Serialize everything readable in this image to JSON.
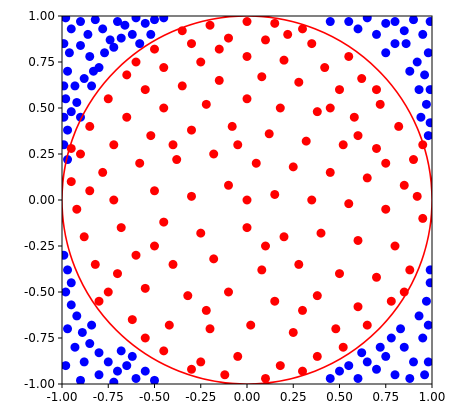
{
  "chart_data": {
    "type": "scatter",
    "title": "",
    "xlabel": "",
    "ylabel": "",
    "xlim": [
      -1.0,
      1.0
    ],
    "ylim": [
      -1.0,
      1.0
    ],
    "grid": false,
    "aspect": "equal",
    "x_ticks": [
      "-1.00",
      "-0.75",
      "-0.50",
      "-0.25",
      "0.00",
      "0.25",
      "0.50",
      "0.75",
      "1.00"
    ],
    "y_ticks": [
      "1.00",
      "0.75",
      "0.50",
      "0.25",
      "0.00",
      "-0.25",
      "-0.50",
      "-0.75",
      "-1.00"
    ],
    "x_tick_values": [
      -1.0,
      -0.75,
      -0.5,
      -0.25,
      0.0,
      0.25,
      0.5,
      0.75,
      1.0
    ],
    "y_tick_values": [
      1.0,
      0.75,
      0.5,
      0.25,
      0.0,
      -0.25,
      -0.5,
      -0.75,
      -1.0
    ],
    "circle": {
      "cx": 0,
      "cy": 0,
      "r": 1,
      "color": "#ff0000"
    },
    "series": [
      {
        "color": "#0000ff",
        "points": [
          [
            -0.98,
            0.99
          ],
          [
            -0.95,
            0.93
          ],
          [
            -0.9,
            0.97
          ],
          [
            -0.86,
            0.9
          ],
          [
            -0.82,
            0.98
          ],
          [
            -0.78,
            0.93
          ],
          [
            -0.74,
            0.87
          ],
          [
            -0.7,
            0.97
          ],
          [
            -0.66,
            0.95
          ],
          [
            -0.6,
            0.99
          ],
          [
            -0.55,
            0.96
          ],
          [
            -0.5,
            0.98
          ],
          [
            -0.45,
            0.99
          ],
          [
            -0.96,
            0.8
          ],
          [
            -0.9,
            0.84
          ],
          [
            -0.85,
            0.78
          ],
          [
            -0.8,
            0.72
          ],
          [
            -0.97,
            0.7
          ],
          [
            -0.93,
            0.62
          ],
          [
            -0.88,
            0.66
          ],
          [
            -0.98,
            0.55
          ],
          [
            -0.95,
            0.48
          ],
          [
            -0.9,
            0.45
          ],
          [
            -0.97,
            0.38
          ],
          [
            -0.99,
            0.3
          ],
          [
            -0.97,
            0.22
          ],
          [
            -0.72,
            0.83
          ],
          [
            -0.77,
            0.8
          ],
          [
            -0.62,
            0.9
          ],
          [
            -0.58,
            0.85
          ],
          [
            -0.52,
            0.9
          ],
          [
            -0.68,
            0.88
          ],
          [
            -0.84,
            0.62
          ],
          [
            -0.83,
            0.7
          ],
          [
            -0.92,
            0.53
          ],
          [
            -0.99,
            0.62
          ],
          [
            -0.99,
            0.85
          ],
          [
            -0.99,
            0.45
          ],
          [
            0.55,
            0.97
          ],
          [
            0.6,
            0.93
          ],
          [
            0.65,
            0.99
          ],
          [
            0.7,
            0.9
          ],
          [
            0.75,
            0.96
          ],
          [
            0.8,
            0.85
          ],
          [
            0.85,
            0.92
          ],
          [
            0.9,
            0.98
          ],
          [
            0.95,
            0.9
          ],
          [
            0.98,
            0.8
          ],
          [
            0.92,
            0.75
          ],
          [
            0.96,
            0.68
          ],
          [
            0.99,
            0.6
          ],
          [
            0.97,
            0.52
          ],
          [
            0.99,
            0.42
          ],
          [
            0.98,
            0.35
          ],
          [
            0.8,
            0.97
          ],
          [
            0.86,
            0.85
          ],
          [
            0.93,
            0.6
          ],
          [
            0.88,
            0.7
          ],
          [
            0.45,
            0.97
          ],
          [
            0.99,
            0.97
          ],
          [
            0.75,
            0.8
          ],
          [
            0.94,
            0.45
          ],
          [
            -0.98,
            -0.5
          ],
          [
            -0.95,
            -0.57
          ],
          [
            -0.92,
            -0.63
          ],
          [
            -0.97,
            -0.7
          ],
          [
            -0.89,
            -0.72
          ],
          [
            -0.85,
            -0.78
          ],
          [
            -0.93,
            -0.8
          ],
          [
            -0.8,
            -0.83
          ],
          [
            -0.75,
            -0.88
          ],
          [
            -0.88,
            -0.88
          ],
          [
            -0.98,
            -0.9
          ],
          [
            -0.7,
            -0.93
          ],
          [
            -0.65,
            -0.9
          ],
          [
            -0.8,
            -0.95
          ],
          [
            -0.6,
            -0.97
          ],
          [
            -0.55,
            -0.93
          ],
          [
            -0.9,
            -0.98
          ],
          [
            -0.5,
            -0.98
          ],
          [
            -0.72,
            -0.99
          ],
          [
            -0.99,
            -0.3
          ],
          [
            -0.97,
            -0.38
          ],
          [
            -0.95,
            -0.45
          ],
          [
            -0.62,
            -0.85
          ],
          [
            -0.68,
            -0.82
          ],
          [
            -0.84,
            -0.68
          ],
          [
            0.45,
            -0.97
          ],
          [
            0.5,
            -0.93
          ],
          [
            0.55,
            -0.9
          ],
          [
            0.6,
            -0.97
          ],
          [
            0.65,
            -0.88
          ],
          [
            0.7,
            -0.92
          ],
          [
            0.75,
            -0.85
          ],
          [
            0.8,
            -0.95
          ],
          [
            0.85,
            -0.8
          ],
          [
            0.9,
            -0.88
          ],
          [
            0.95,
            -0.75
          ],
          [
            0.98,
            -0.68
          ],
          [
            0.93,
            -0.63
          ],
          [
            0.97,
            -0.55
          ],
          [
            0.99,
            -0.45
          ],
          [
            0.88,
            -0.97
          ],
          [
            0.78,
            -0.75
          ],
          [
            0.72,
            -0.8
          ],
          [
            0.98,
            -0.88
          ],
          [
            0.99,
            -0.38
          ],
          [
            0.96,
            -0.95
          ],
          [
            0.83,
            -0.7
          ],
          [
            0.62,
            -0.83
          ]
        ]
      },
      {
        "color": "#ff0000",
        "points": [
          [
            -0.35,
            0.92
          ],
          [
            -0.2,
            0.95
          ],
          [
            0.0,
            0.97
          ],
          [
            0.15,
            0.96
          ],
          [
            0.3,
            0.93
          ],
          [
            -0.5,
            0.82
          ],
          [
            -0.3,
            0.85
          ],
          [
            -0.1,
            0.88
          ],
          [
            0.1,
            0.87
          ],
          [
            0.35,
            0.85
          ],
          [
            0.55,
            0.78
          ],
          [
            -0.65,
            0.68
          ],
          [
            -0.45,
            0.72
          ],
          [
            -0.25,
            0.75
          ],
          [
            0.0,
            0.78
          ],
          [
            0.2,
            0.76
          ],
          [
            0.42,
            0.72
          ],
          [
            0.62,
            0.66
          ],
          [
            -0.75,
            0.55
          ],
          [
            -0.55,
            0.6
          ],
          [
            -0.35,
            0.62
          ],
          [
            -0.15,
            0.65
          ],
          [
            0.08,
            0.67
          ],
          [
            0.28,
            0.64
          ],
          [
            0.5,
            0.6
          ],
          [
            0.72,
            0.52
          ],
          [
            -0.85,
            0.4
          ],
          [
            -0.65,
            0.45
          ],
          [
            -0.45,
            0.5
          ],
          [
            -0.22,
            0.52
          ],
          [
            0.0,
            0.55
          ],
          [
            0.18,
            0.5
          ],
          [
            0.38,
            0.48
          ],
          [
            0.58,
            0.45
          ],
          [
            0.82,
            0.4
          ],
          [
            -0.9,
            0.25
          ],
          [
            -0.72,
            0.3
          ],
          [
            -0.52,
            0.35
          ],
          [
            -0.3,
            0.38
          ],
          [
            -0.08,
            0.4
          ],
          [
            0.12,
            0.36
          ],
          [
            0.32,
            0.32
          ],
          [
            0.52,
            0.3
          ],
          [
            0.7,
            0.28
          ],
          [
            0.9,
            0.22
          ],
          [
            -0.95,
            0.1
          ],
          [
            -0.78,
            0.15
          ],
          [
            -0.58,
            0.2
          ],
          [
            -0.38,
            0.22
          ],
          [
            -0.18,
            0.25
          ],
          [
            0.05,
            0.2
          ],
          [
            0.25,
            0.18
          ],
          [
            0.45,
            0.15
          ],
          [
            0.65,
            0.12
          ],
          [
            0.85,
            0.08
          ],
          [
            -0.92,
            -0.05
          ],
          [
            -0.72,
            0.0
          ],
          [
            -0.5,
            0.05
          ],
          [
            -0.3,
            0.02
          ],
          [
            -0.1,
            0.08
          ],
          [
            0.15,
            0.03
          ],
          [
            0.35,
            0.0
          ],
          [
            0.55,
            -0.02
          ],
          [
            0.75,
            -0.05
          ],
          [
            0.95,
            -0.1
          ],
          [
            -0.88,
            -0.2
          ],
          [
            -0.68,
            -0.15
          ],
          [
            -0.45,
            -0.12
          ],
          [
            -0.25,
            -0.18
          ],
          [
            0.0,
            -0.15
          ],
          [
            0.2,
            -0.2
          ],
          [
            0.4,
            -0.18
          ],
          [
            0.6,
            -0.22
          ],
          [
            0.8,
            -0.25
          ],
          [
            -0.82,
            -0.35
          ],
          [
            -0.6,
            -0.3
          ],
          [
            -0.4,
            -0.35
          ],
          [
            -0.18,
            -0.32
          ],
          [
            0.08,
            -0.38
          ],
          [
            0.28,
            -0.35
          ],
          [
            0.5,
            -0.4
          ],
          [
            0.7,
            -0.42
          ],
          [
            0.88,
            -0.38
          ],
          [
            -0.75,
            -0.5
          ],
          [
            -0.55,
            -0.48
          ],
          [
            -0.32,
            -0.52
          ],
          [
            -0.1,
            -0.5
          ],
          [
            0.15,
            -0.55
          ],
          [
            0.38,
            -0.52
          ],
          [
            0.6,
            -0.58
          ],
          [
            0.78,
            -0.55
          ],
          [
            -0.62,
            -0.65
          ],
          [
            -0.42,
            -0.68
          ],
          [
            -0.2,
            -0.7
          ],
          [
            0.02,
            -0.68
          ],
          [
            0.25,
            -0.72
          ],
          [
            0.48,
            -0.7
          ],
          [
            0.65,
            -0.68
          ],
          [
            -0.45,
            -0.82
          ],
          [
            -0.25,
            -0.88
          ],
          [
            -0.05,
            -0.85
          ],
          [
            0.18,
            -0.9
          ],
          [
            0.38,
            -0.85
          ],
          [
            -0.12,
            -0.95
          ],
          [
            0.1,
            -0.97
          ],
          [
            -0.3,
            -0.92
          ],
          [
            0.3,
            -0.93
          ],
          [
            -0.6,
            0.75
          ],
          [
            0.7,
            0.6
          ],
          [
            -0.8,
            -0.55
          ],
          [
            0.85,
            -0.5
          ],
          [
            -0.95,
            0.28
          ],
          [
            0.95,
            0.3
          ],
          [
            0.0,
            0.0
          ],
          [
            -0.05,
            0.3
          ],
          [
            0.45,
            0.5
          ],
          [
            -0.5,
            -0.25
          ],
          [
            0.3,
            -0.6
          ],
          [
            -0.15,
            0.82
          ],
          [
            0.6,
            0.35
          ],
          [
            -0.7,
            -0.4
          ],
          [
            0.22,
            0.9
          ],
          [
            -0.4,
            0.3
          ],
          [
            0.1,
            -0.25
          ],
          [
            0.52,
            -0.8
          ],
          [
            -0.55,
            -0.75
          ],
          [
            0.75,
            0.2
          ],
          [
            -0.85,
            0.05
          ],
          [
            0.92,
            0.02
          ],
          [
            -0.22,
            -0.6
          ]
        ]
      }
    ]
  }
}
